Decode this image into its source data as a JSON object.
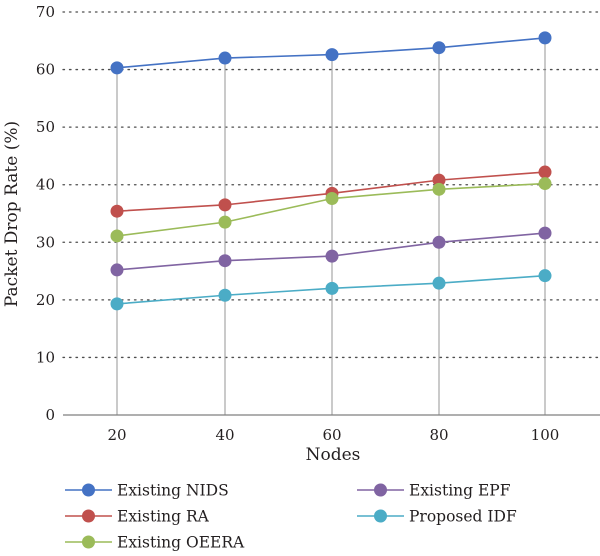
{
  "chart_data": {
    "type": "line",
    "title": "",
    "xlabel": "Nodes",
    "ylabel": "Packet Drop Rate (%)",
    "categories": [
      "20",
      "40",
      "60",
      "80",
      "100"
    ],
    "x": [
      20,
      40,
      60,
      80,
      100
    ],
    "ylim": [
      0,
      70
    ],
    "yticks": [
      "0",
      "10",
      "20",
      "30",
      "40",
      "50",
      "60",
      "70"
    ],
    "grid": "horizontal dotted lines, vertical solid drop lines at each node",
    "legend_position": "bottom",
    "series": [
      {
        "name": "Existing NIDS",
        "color": "#4472c4",
        "values": [
          60.3,
          62.0,
          62.6,
          63.8,
          65.5
        ]
      },
      {
        "name": "Existing RA",
        "color": "#c0504d",
        "values": [
          35.4,
          36.5,
          38.5,
          40.8,
          42.2
        ]
      },
      {
        "name": "Existing OEERA",
        "color": "#9bbb59",
        "values": [
          31.1,
          33.5,
          37.6,
          39.2,
          40.2
        ]
      },
      {
        "name": "Existing EPF",
        "color": "#8064a2",
        "values": [
          25.2,
          26.8,
          27.6,
          30.0,
          31.6
        ]
      },
      {
        "name": "Proposed IDF",
        "color": "#4bacc6",
        "values": [
          19.3,
          20.8,
          22.0,
          22.9,
          24.2
        ]
      }
    ]
  }
}
